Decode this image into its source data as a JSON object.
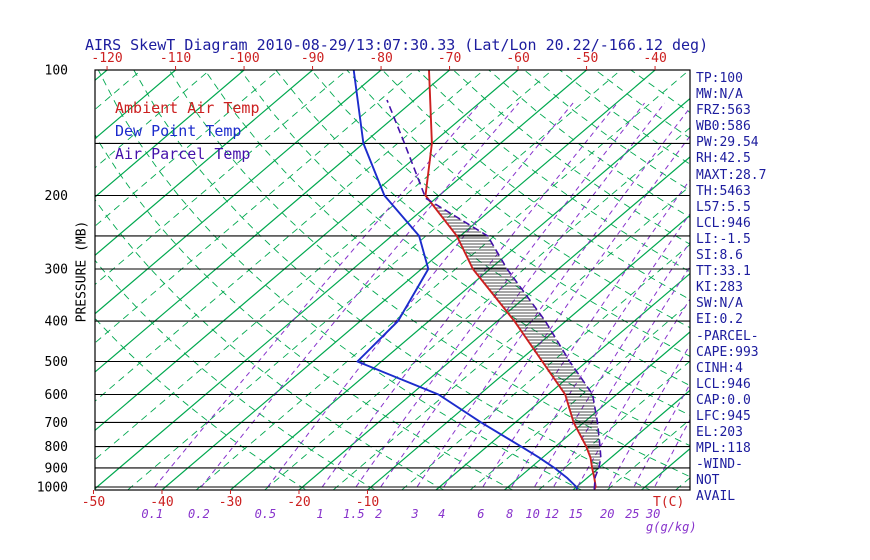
{
  "title": {
    "text": "AIRS SkewT Diagram 2010-08-29/13:07:30.33 (Lat/Lon 20.22/-166.12 deg)"
  },
  "colors": {
    "title": "#1c1c9e",
    "stats": "#1c1c9e",
    "ambient": "#cc2020",
    "dewpoint": "#1c2ccc",
    "parcel": "#4411aa",
    "isotherm": "#00a84f",
    "mixing": "#8833cc",
    "pressure_line": "#000000",
    "hatch": "#111111"
  },
  "legend": {
    "ambient": "Ambient Air Temp",
    "dewpoint": "Dew Point Temp",
    "parcel": "Air Parcel Temp"
  },
  "axes": {
    "pressure_label": "PRESSURE (MB)",
    "pressure_ticks": [
      100,
      200,
      300,
      400,
      500,
      600,
      700,
      800,
      900,
      1000
    ],
    "pressure_lines": [
      100,
      150,
      200,
      250,
      300,
      400,
      500,
      600,
      700,
      800,
      900,
      1000
    ],
    "temp_ticks_top": [
      -120,
      -110,
      -100,
      -90,
      -80,
      -70,
      -60,
      -50,
      -40
    ],
    "temp_ticks_bottom": [
      -50,
      -40,
      -30,
      -20,
      -10
    ],
    "temp_unit_label": "T(C)",
    "mixing_ticks": [
      0.1,
      0.2,
      0.5,
      1,
      1.5,
      2,
      3,
      4,
      6,
      8,
      10,
      12,
      15,
      20,
      25,
      30
    ],
    "mixing_unit_label": "g(g/kg)"
  },
  "stats": [
    "TP:100",
    "MW:N/A",
    "FRZ:563",
    "WB0:586",
    "PW:29.54",
    "RH:42.5",
    "MAXT:28.7",
    "TH:5463",
    "L57:5.5",
    "LCL:946",
    "LI:-1.5",
    "SI:8.6",
    "TT:33.1",
    "KI:283",
    "SW:N/A",
    "EI:0.2",
    "-PARCEL-",
    "CAPE:993",
    "CINH:4",
    "LCL:946",
    "CAP:0.0",
    "LFC:945",
    "EL:203",
    "MPL:118",
    "-WIND-",
    "NOT",
    "AVAIL"
  ],
  "chart_data": {
    "type": "line",
    "x_axis": "Temperature (C), skewed 45 deg",
    "y_axis": "Pressure (mb), log scale 100-1050",
    "grid": {
      "isotherm_step_c": 10,
      "isotherm_range_c": [
        -130,
        40
      ],
      "dry_adiabat_theta_k": [
        253,
        443
      ],
      "dry_adiabat_step_k": 10
    },
    "series": [
      {
        "name": "Ambient Air Temp",
        "key": "ambient",
        "points": [
          [
            1013,
            23
          ],
          [
            1000,
            22.8
          ],
          [
            950,
            21
          ],
          [
            900,
            19
          ],
          [
            850,
            17
          ],
          [
            800,
            14.5
          ],
          [
            700,
            8.5
          ],
          [
            600,
            2.5
          ],
          [
            500,
            -6.5
          ],
          [
            400,
            -17.5
          ],
          [
            300,
            -32.5
          ],
          [
            250,
            -40.5
          ],
          [
            200,
            -52
          ],
          [
            150,
            -60
          ],
          [
            100,
            -73
          ]
        ]
      },
      {
        "name": "Dew Point Temp",
        "key": "dewpoint",
        "points": [
          [
            1013,
            20.5
          ],
          [
            1000,
            20
          ],
          [
            950,
            17
          ],
          [
            900,
            13.5
          ],
          [
            850,
            9.5
          ],
          [
            800,
            5
          ],
          [
            700,
            -5
          ],
          [
            600,
            -16
          ],
          [
            500,
            -33.5
          ],
          [
            400,
            -34.5
          ],
          [
            300,
            -39
          ],
          [
            250,
            -46
          ],
          [
            200,
            -58
          ],
          [
            150,
            -70
          ],
          [
            100,
            -84
          ]
        ]
      },
      {
        "name": "Air Parcel Temp",
        "key": "parcel",
        "points": [
          [
            1013,
            23
          ],
          [
            946,
            21
          ],
          [
            900,
            20
          ],
          [
            850,
            18.5
          ],
          [
            800,
            16.5
          ],
          [
            700,
            12
          ],
          [
            600,
            6.5
          ],
          [
            500,
            -2.5
          ],
          [
            400,
            -13
          ],
          [
            300,
            -27.5
          ],
          [
            250,
            -36
          ],
          [
            203,
            -51.5
          ],
          [
            150,
            -64
          ],
          [
            118,
            -74
          ]
        ]
      }
    ],
    "cape_hatch_mb": [
      203,
      946
    ]
  }
}
